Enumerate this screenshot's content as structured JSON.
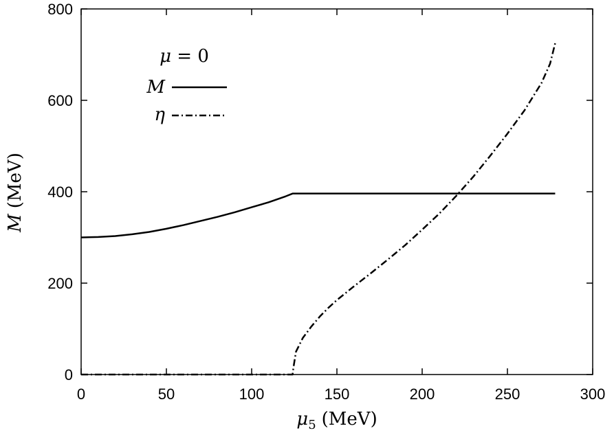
{
  "chart_data": {
    "type": "line",
    "title": "",
    "xlabel": "μ5 (MeV)",
    "ylabel": "M (MeV)",
    "xlabel_parts": {
      "symbol": "μ",
      "subscript": "5",
      "unit": "(MeV)"
    },
    "ylabel_parts": {
      "symbol": "M",
      "unit": "(MeV)"
    },
    "xlim": [
      0,
      300
    ],
    "ylim": [
      0,
      800
    ],
    "xticks": [
      0,
      50,
      100,
      150,
      200,
      250,
      300
    ],
    "yticks": [
      0,
      200,
      400,
      600,
      800
    ],
    "grid": false,
    "legend": {
      "placement": "top-left",
      "title": "μ = 0",
      "title_parts": {
        "symbol": "μ",
        "rest": " = 0"
      }
    },
    "series": [
      {
        "name": "M",
        "style": "solid",
        "x": [
          0,
          10,
          20,
          30,
          40,
          50,
          60,
          70,
          80,
          90,
          100,
          110,
          120,
          124,
          150,
          200,
          250,
          278
        ],
        "y": [
          300,
          301,
          303,
          307,
          312,
          319,
          327,
          336,
          345,
          355,
          366,
          377,
          390,
          396,
          396,
          396,
          396,
          396
        ]
      },
      {
        "name": "η",
        "style": "dashdot",
        "x": [
          0,
          50,
          100,
          124,
          124.5,
          126,
          130,
          135,
          140,
          145,
          150,
          160,
          170,
          180,
          190,
          200,
          210,
          220,
          230,
          240,
          250,
          260,
          270,
          275,
          278
        ],
        "y": [
          0,
          0,
          0,
          0,
          15,
          50,
          80,
          105,
          127,
          146,
          163,
          193,
          222,
          252,
          283,
          317,
          352,
          391,
          433,
          479,
          527,
          578,
          638,
          680,
          725
        ]
      }
    ]
  }
}
